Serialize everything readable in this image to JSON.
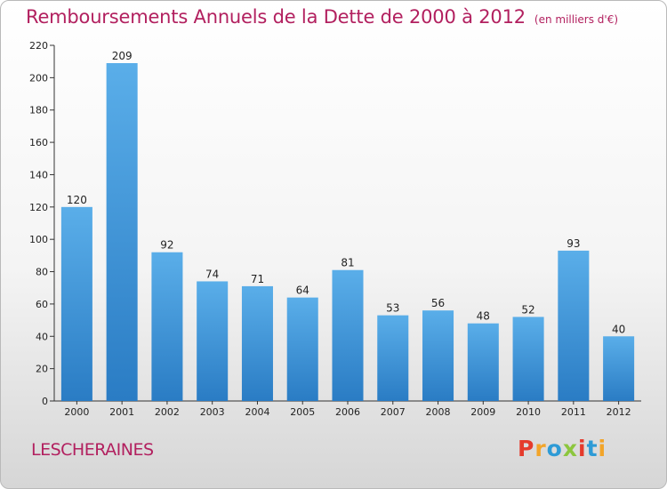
{
  "header": {
    "title": "Remboursements Annuels de la Dette de 2000 à 2012",
    "unit": "(en milliers d'€)"
  },
  "footer": {
    "town": "LESCHERAINES",
    "logo_letters": [
      "P",
      "r",
      "o",
      "x",
      "i",
      "t",
      "i"
    ],
    "logo_colors": [
      "#e53b2c",
      "#f2a52a",
      "#2e9bd6",
      "#8cc63e",
      "#e53b2c",
      "#2e9bd6",
      "#f2a52a"
    ]
  },
  "chart_data": {
    "type": "bar",
    "categories": [
      "2000",
      "2001",
      "2002",
      "2003",
      "2004",
      "2005",
      "2006",
      "2007",
      "2008",
      "2009",
      "2010",
      "2011",
      "2012"
    ],
    "values": [
      120,
      209,
      92,
      74,
      71,
      64,
      81,
      53,
      56,
      48,
      52,
      93,
      40
    ],
    "title": "Remboursements Annuels de la Dette de 2000 à 2012",
    "xlabel": "",
    "ylabel": "",
    "ylim": [
      0,
      220
    ],
    "yticks": [
      0,
      20,
      40,
      60,
      80,
      100,
      120,
      140,
      160,
      180,
      200,
      220
    ],
    "grid": false,
    "bar_color_top": "#5aaee9",
    "bar_color_bottom": "#2a7cc4"
  }
}
